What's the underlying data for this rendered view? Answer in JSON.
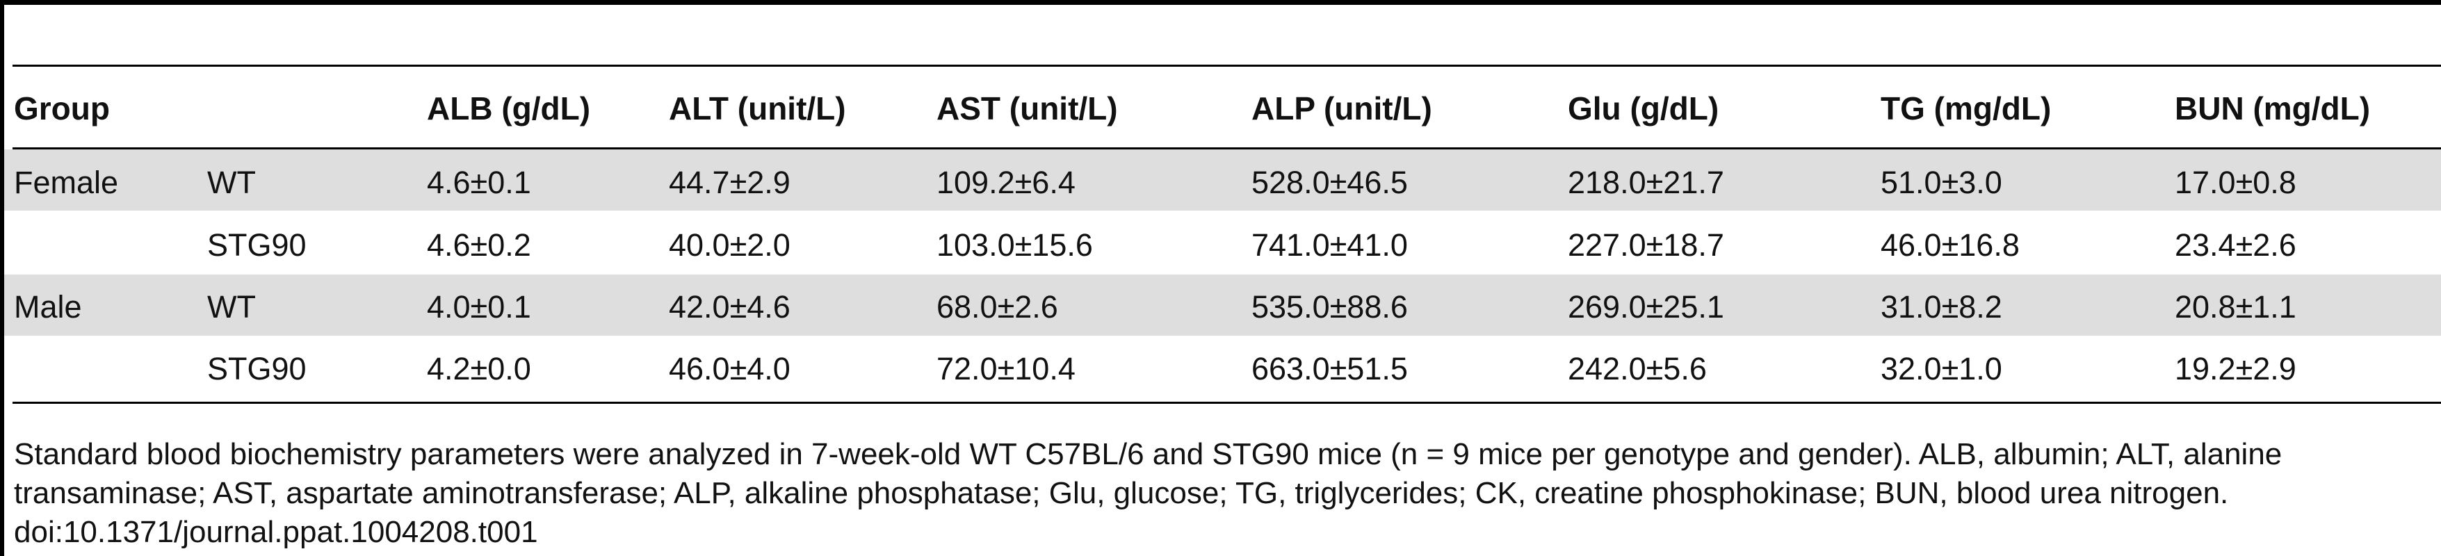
{
  "table": {
    "headers": [
      "Group",
      "",
      "ALB (g/dL)",
      "ALT (unit/L)",
      "AST (unit/L)",
      "ALP (unit/L)",
      "Glu (g/dL)",
      "TG (mg/dL)",
      "BUN (mg/dL)"
    ],
    "rows": [
      {
        "group": "Female",
        "genotype": "WT",
        "values": [
          "4.6±0.1",
          "44.7±2.9",
          "109.2±6.4",
          "528.0±46.5",
          "218.0±21.7",
          "51.0±3.0",
          "17.0±0.8"
        ]
      },
      {
        "group": "",
        "genotype": "STG90",
        "values": [
          "4.6±0.2",
          "40.0±2.0",
          "103.0±15.6",
          "741.0±41.0",
          "227.0±18.7",
          "46.0±16.8",
          "23.4±2.6"
        ]
      },
      {
        "group": "Male",
        "genotype": "WT",
        "values": [
          "4.0±0.1",
          "42.0±4.6",
          "68.0±2.6",
          "535.0±88.6",
          "269.0±25.1",
          "31.0±8.2",
          "20.8±1.1"
        ]
      },
      {
        "group": "",
        "genotype": "STG90",
        "values": [
          "4.2±0.0",
          "46.0±4.0",
          "72.0±10.4",
          "663.0±51.5",
          "242.0±5.6",
          "32.0±1.0",
          "19.2±2.9"
        ]
      }
    ]
  },
  "caption": {
    "line1": "Standard blood biochemistry parameters were analyzed in 7-week-old WT C57BL/6 and STG90 mice (n = 9 mice per genotype and gender). ALB, albumin; ALT, alanine",
    "line2": "transaminase; AST, aspartate aminotransferase; ALP, alkaline phosphatase; Glu, glucose; TG, triglycerides; CK, creatine phosphokinase; BUN, blood urea nitrogen.",
    "doi": "doi:10.1371/journal.ppat.1004208.t001"
  }
}
